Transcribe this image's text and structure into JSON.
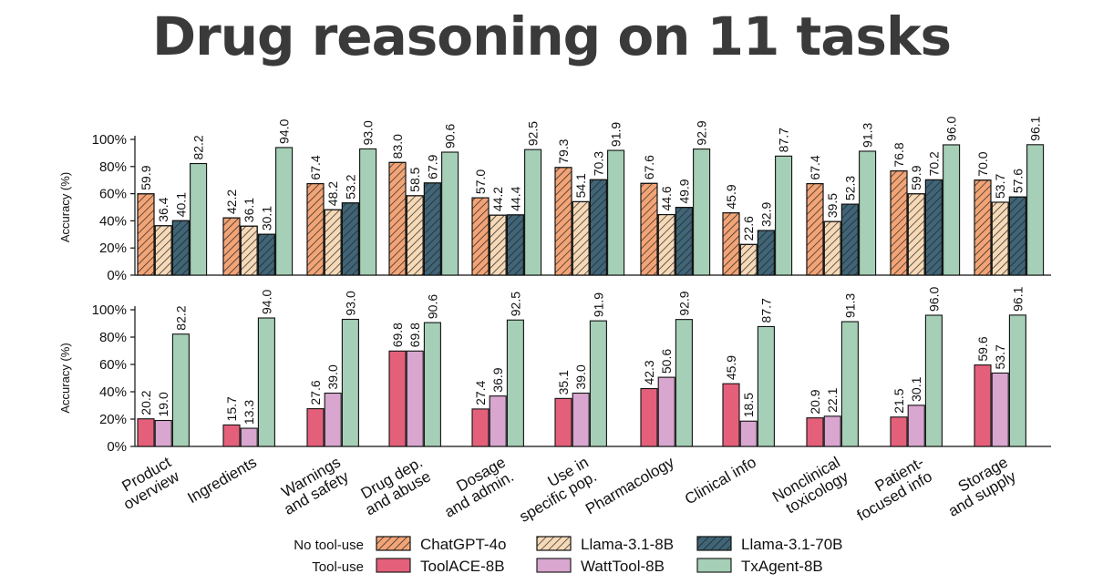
{
  "title": "Drug reasoning on 11 tasks",
  "colors": {
    "chatgpt": "#f2a476",
    "llama8b": "#f6d9b7",
    "llama70b": "#3f6577",
    "toolace": "#e4607a",
    "watttool": "#d8a6cf",
    "txagent": "#a5cfb6"
  },
  "legend": {
    "group_no_tool": "No tool-use",
    "group_tool": "Tool-use"
  },
  "chart_data": [
    {
      "type": "bar",
      "panel": "top",
      "ylabel": "Accuracy (%)",
      "ylim": [
        0,
        100
      ],
      "yticks": [
        "0%",
        "20%",
        "40%",
        "60%",
        "80%",
        "100%"
      ],
      "categories": [
        "Product overview",
        "Ingredients",
        "Warnings and safety",
        "Drug dep. and abuse",
        "Dosage and admin.",
        "Use in specific pop.",
        "Pharmacology",
        "Clinical info",
        "Nonclinical toxicology",
        "Patient-focused info",
        "Storage and supply"
      ],
      "series": [
        {
          "key": "chatgpt",
          "name": "ChatGPT-4o",
          "group": "No tool-use",
          "hatched": true,
          "values": [
            59.9,
            42.2,
            67.4,
            83.0,
            57.0,
            79.3,
            67.6,
            45.9,
            67.4,
            76.8,
            70.0
          ],
          "labels": [
            "59.9",
            "42.2",
            "67.4",
            "83.0",
            "57.0",
            "79.3",
            "67.6",
            "45.9",
            "67.4",
            "76.8",
            "70.0"
          ]
        },
        {
          "key": "llama8b",
          "name": "Llama-3.1-8B",
          "group": "No tool-use",
          "hatched": true,
          "values": [
            36.4,
            36.1,
            48.2,
            58.5,
            44.2,
            54.1,
            44.6,
            22.6,
            39.5,
            59.9,
            53.7
          ],
          "labels": [
            "36.4",
            "36.1",
            "48.2",
            "58.5",
            "44.2",
            "54.1",
            "44.6",
            "22.6",
            "39.5",
            "59.9",
            "53.7"
          ]
        },
        {
          "key": "llama70b",
          "name": "Llama-3.1-70B",
          "group": "No tool-use",
          "hatched": true,
          "values": [
            40.1,
            30.1,
            53.2,
            67.9,
            44.4,
            70.3,
            49.9,
            32.9,
            52.3,
            70.2,
            57.6
          ],
          "labels": [
            "40.1",
            "30.1",
            "53.2",
            "67.9",
            "44.4",
            "70.3",
            "49.9",
            "32.9",
            "52.3",
            "70.2",
            "57.6"
          ]
        },
        {
          "key": "txagent",
          "name": "TxAgent-8B",
          "group": "Tool-use",
          "hatched": false,
          "values": [
            82.2,
            94.0,
            93.0,
            90.6,
            92.5,
            91.9,
            92.9,
            87.7,
            91.3,
            96.0,
            96.1
          ],
          "labels": [
            "82.2",
            "94.0",
            "93.0",
            "90.6",
            "92.5",
            "91.9",
            "92.9",
            "87.7",
            "91.3",
            "96.0",
            "96.1"
          ]
        }
      ]
    },
    {
      "type": "bar",
      "panel": "bottom",
      "ylabel": "Accuracy (%)",
      "ylim": [
        0,
        100
      ],
      "yticks": [
        "0%",
        "20%",
        "40%",
        "60%",
        "80%",
        "100%"
      ],
      "categories": [
        "Product overview",
        "Ingredients",
        "Warnings and safety",
        "Drug dep. and abuse",
        "Dosage and admin.",
        "Use in specific pop.",
        "Pharmacology",
        "Clinical info",
        "Nonclinical toxicology",
        "Patient-focused info",
        "Storage and supply"
      ],
      "xticklabels": [
        [
          "Product",
          "overview"
        ],
        [
          "Ingredients"
        ],
        [
          "Warnings",
          "and safety"
        ],
        [
          "Drug dep.",
          "and abuse"
        ],
        [
          "Dosage",
          "and admin."
        ],
        [
          "Use in",
          "specific pop."
        ],
        [
          "Pharmacology"
        ],
        [
          "Clinical info"
        ],
        [
          "Nonclinical",
          "toxicology"
        ],
        [
          "Patient-",
          "focused info"
        ],
        [
          "Storage",
          "and supply"
        ]
      ],
      "series": [
        {
          "key": "toolace",
          "name": "ToolACE-8B",
          "group": "Tool-use",
          "hatched": false,
          "values": [
            20.2,
            15.7,
            27.6,
            69.8,
            27.4,
            35.1,
            42.3,
            45.9,
            20.9,
            21.5,
            59.6
          ],
          "labels": [
            "20.2",
            "15.7",
            "27.6",
            "69.8",
            "27.4",
            "35.1",
            "42.3",
            "45.9",
            "20.9",
            "21.5",
            "59.6"
          ]
        },
        {
          "key": "watttool",
          "name": "WattTool-8B",
          "group": "Tool-use",
          "hatched": false,
          "values": [
            19.0,
            13.3,
            39.0,
            69.8,
            36.9,
            39.0,
            50.6,
            18.5,
            22.1,
            30.1,
            53.7
          ],
          "labels": [
            "19.0",
            "13.3",
            "39.0",
            "69.8",
            "36.9",
            "39.0",
            "50.6",
            "18.5",
            "22.1",
            "30.1",
            "53.7"
          ]
        },
        {
          "key": "txagent",
          "name": "TxAgent-8B",
          "group": "Tool-use",
          "hatched": false,
          "values": [
            82.2,
            94.0,
            93.0,
            90.6,
            92.5,
            91.9,
            92.9,
            87.7,
            91.3,
            96.0,
            96.1
          ],
          "labels": [
            "82.2",
            "94.0",
            "93.0",
            "90.6",
            "92.5",
            "91.9",
            "92.9",
            "87.7",
            "91.3",
            "96.0",
            "96.1"
          ]
        }
      ]
    }
  ],
  "legend_items": [
    {
      "key": "chatgpt",
      "name": "ChatGPT-4o",
      "hatched": true
    },
    {
      "key": "llama8b",
      "name": "Llama-3.1-8B",
      "hatched": true
    },
    {
      "key": "llama70b",
      "name": "Llama-3.1-70B",
      "hatched": true
    },
    {
      "key": "toolace",
      "name": "ToolACE-8B",
      "hatched": false
    },
    {
      "key": "watttool",
      "name": "WattTool-8B",
      "hatched": false
    },
    {
      "key": "txagent",
      "name": "TxAgent-8B",
      "hatched": false
    }
  ]
}
